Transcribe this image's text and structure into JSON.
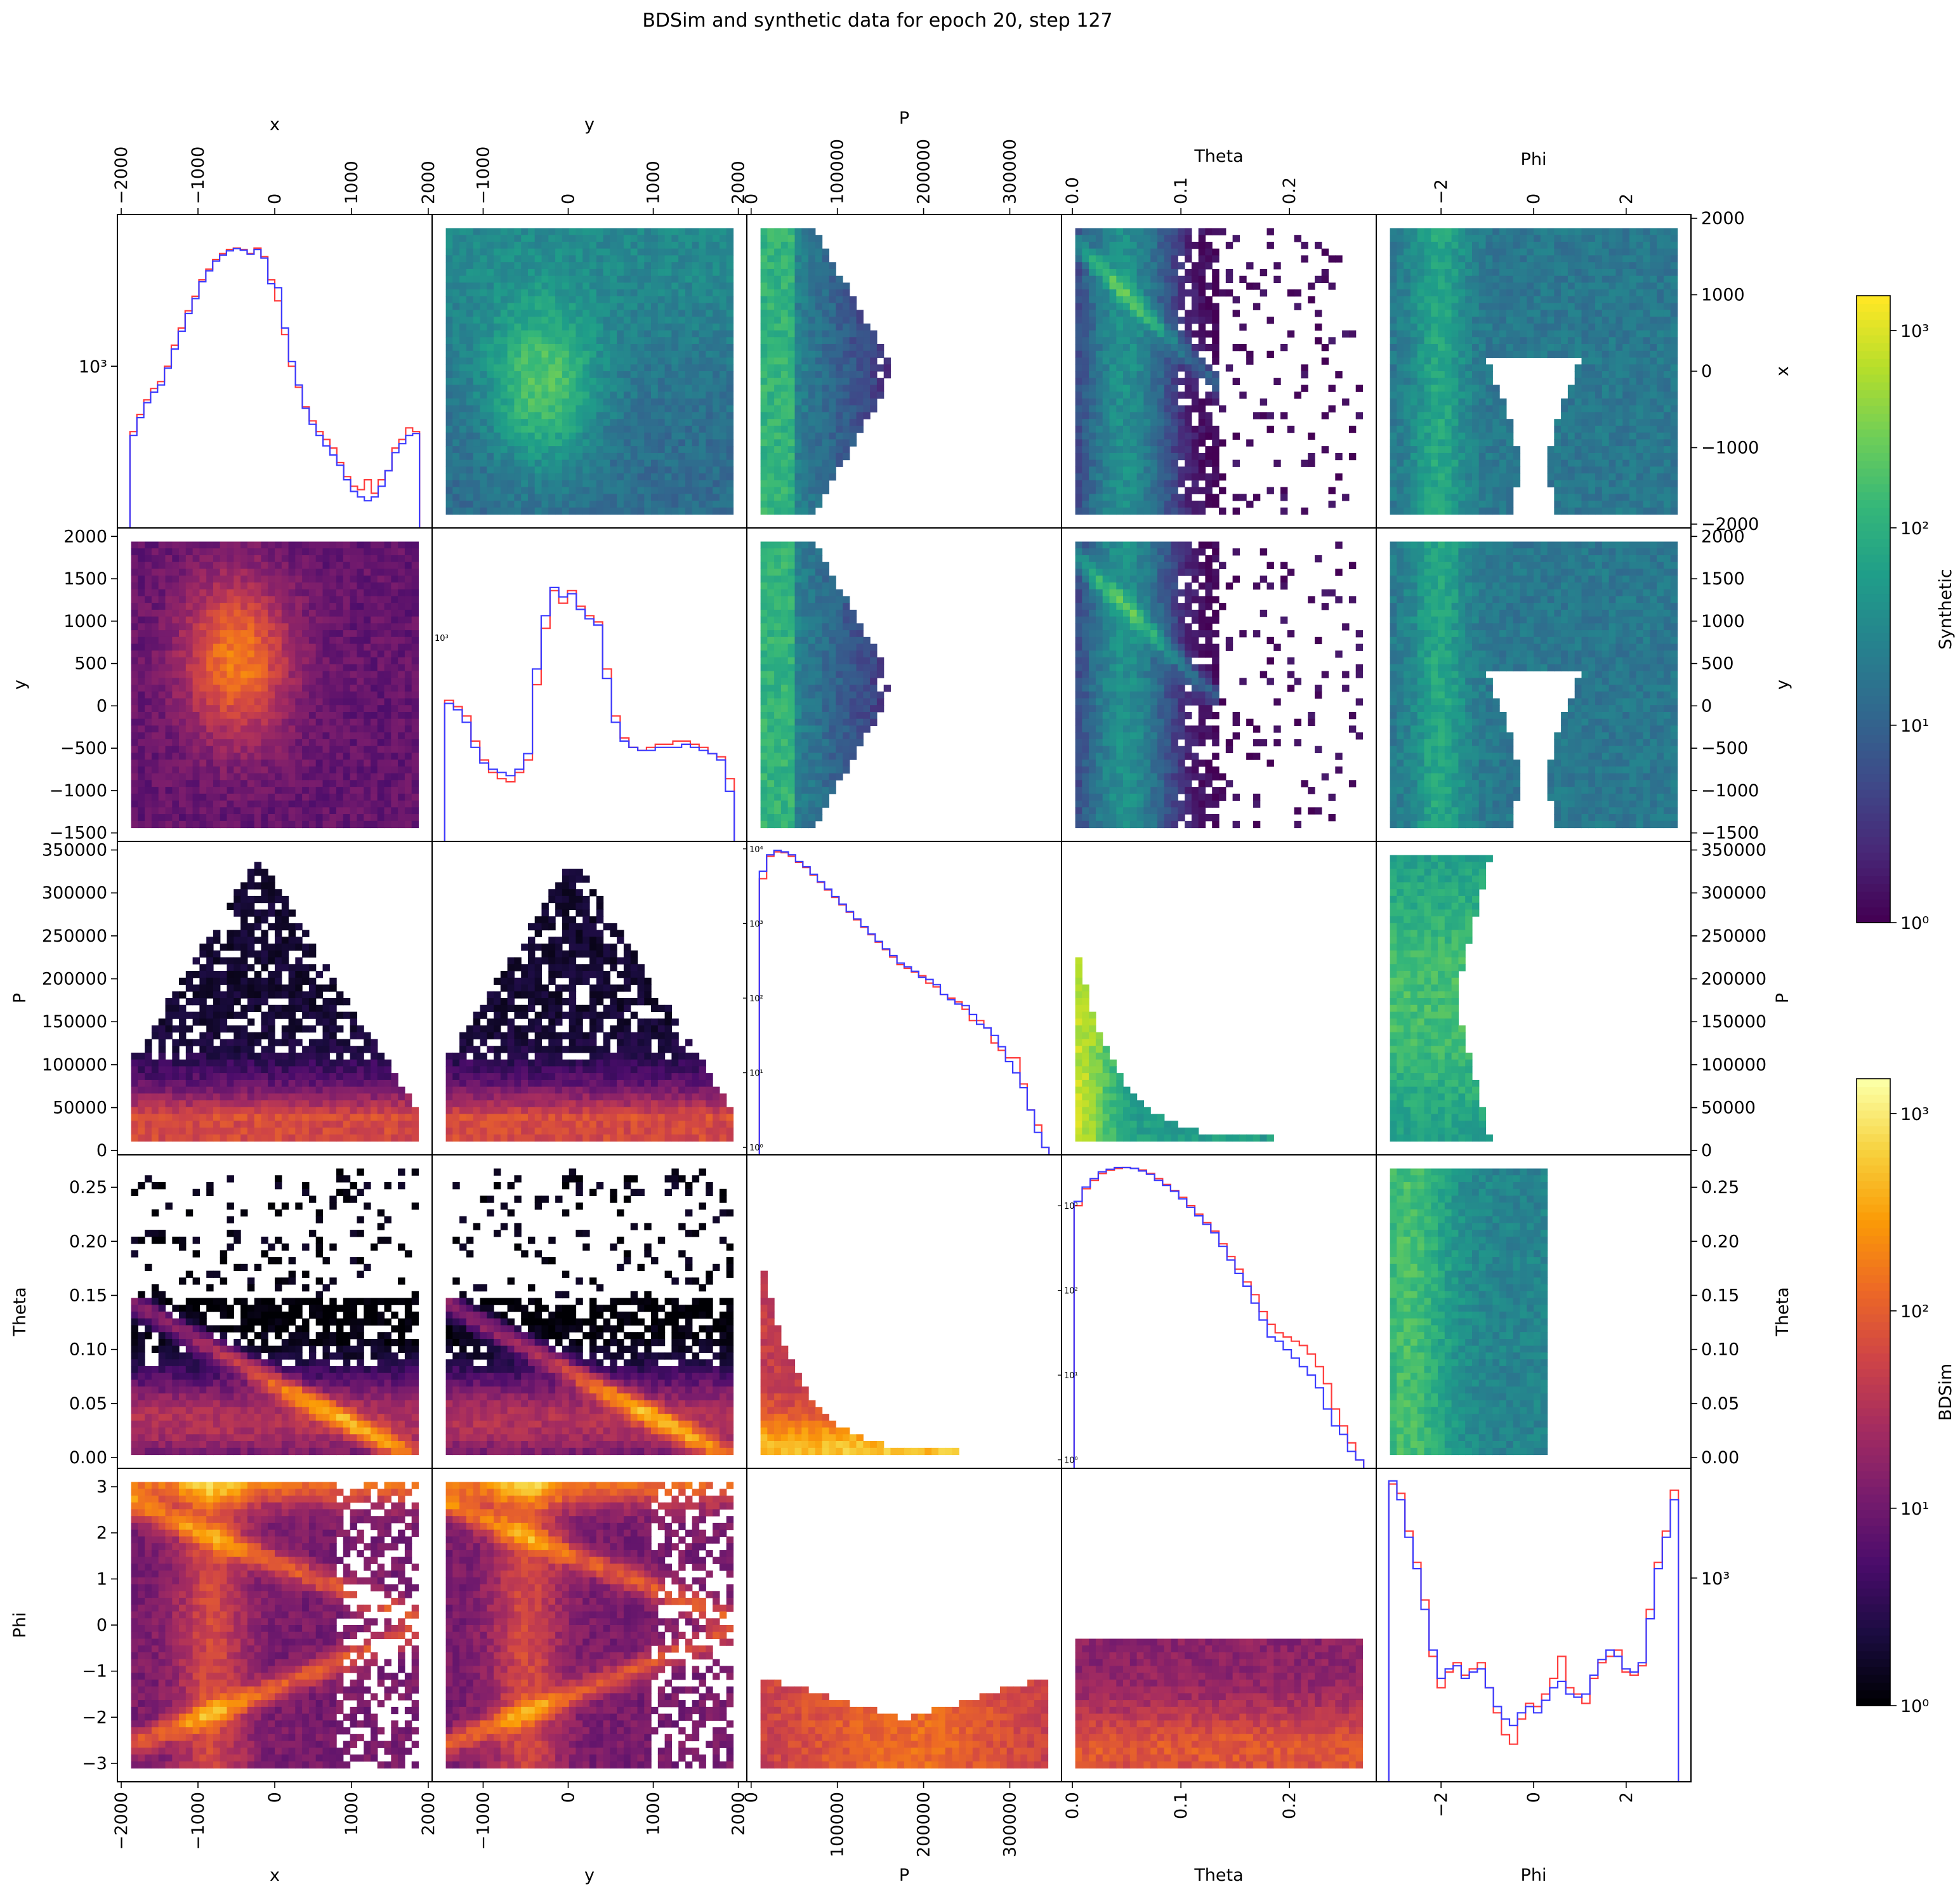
{
  "chart_data": {
    "type": "heatmap",
    "title": "BDSim and synthetic data for epoch 20, step 127",
    "variables": [
      {
        "name": "x",
        "lim": [
          -2050,
          2050
        ],
        "ticks": [
          -2000,
          -1000,
          0,
          1000,
          2000
        ],
        "tick_labels": [
          "−2000",
          "−1000",
          "0",
          "1000",
          "2000"
        ]
      },
      {
        "name": "y",
        "lim": [
          -1600,
          2100
        ],
        "ticks": [
          -1000,
          0,
          1000,
          2000
        ],
        "tick_labels": [
          "−1000",
          "0",
          "1000",
          "2000"
        ],
        "row_ticks": [
          -1500,
          -1000,
          -500,
          0,
          500,
          1000,
          1500,
          2000
        ],
        "row_tick_labels": [
          "−1500",
          "−1000",
          "−500",
          "0",
          "500",
          "1000",
          "1500",
          "2000"
        ]
      },
      {
        "name": "P",
        "lim": [
          -5000,
          360000
        ],
        "ticks": [
          0,
          100000,
          200000,
          300000
        ],
        "tick_labels": [
          "0",
          "100000",
          "200000",
          "300000"
        ],
        "row_ticks": [
          0,
          50000,
          100000,
          150000,
          200000,
          250000,
          300000,
          350000
        ],
        "row_tick_labels": [
          "0",
          "50000",
          "100000",
          "150000",
          "200000",
          "250000",
          "300000",
          "350000"
        ]
      },
      {
        "name": "Theta",
        "lim": [
          -0.01,
          0.28
        ],
        "ticks": [
          0.0,
          0.1,
          0.2
        ],
        "tick_labels": [
          "0.0",
          "0.1",
          "0.2"
        ],
        "row_ticks": [
          0.0,
          0.05,
          0.1,
          0.15,
          0.2,
          0.25
        ],
        "row_tick_labels": [
          "0.00",
          "0.05",
          "0.10",
          "0.15",
          "0.20",
          "0.25"
        ]
      },
      {
        "name": "Phi",
        "lim": [
          -3.4,
          3.4
        ],
        "ticks": [
          -2,
          0,
          2
        ],
        "tick_labels": [
          "−2",
          "0",
          "2"
        ],
        "row_ticks": [
          -3,
          -2,
          -1,
          0,
          1,
          2,
          3
        ],
        "row_tick_labels": [
          "−3",
          "−2",
          "−1",
          "0",
          "1",
          "2",
          "3"
        ]
      }
    ],
    "upper_triangle": "Synthetic",
    "lower_triangle": "BDSim",
    "series": [
      {
        "name": "BDSim",
        "color": "#ff3b3b"
      },
      {
        "name": "Synthetic",
        "color": "#3b3bff"
      }
    ],
    "diagonal": [
      {
        "var": "x",
        "ylabel_tick": "10³",
        "ylabel_value": 1000,
        "red": [
          500,
          600,
          700,
          790,
          850,
          1000,
          1250,
          1500,
          1800,
          2100,
          2500,
          2800,
          3100,
          3300,
          3450,
          3500,
          3450,
          3300,
          3500,
          3200,
          2500,
          2000,
          1400,
          1000,
          800,
          650,
          560,
          500,
          460,
          420,
          360,
          310,
          280,
          270,
          300,
          260,
          300,
          330,
          420,
          460,
          520,
          500
        ],
        "blue": [
          480,
          580,
          680,
          760,
          820,
          980,
          1200,
          1450,
          1750,
          2050,
          2450,
          2750,
          3050,
          3250,
          3400,
          3480,
          3420,
          3280,
          3450,
          3150,
          2400,
          2300,
          1500,
          1050,
          820,
          640,
          540,
          480,
          430,
          390,
          350,
          300,
          265,
          250,
          240,
          250,
          280,
          330,
          400,
          440,
          480,
          490
        ]
      },
      {
        "var": "y",
        "ylabel_tick": "10³",
        "red": [
          0.45,
          0.43,
          0.4,
          0.32,
          0.26,
          0.22,
          0.2,
          0.19,
          0.22,
          0.26,
          0.5,
          0.68,
          0.8,
          0.76,
          0.8,
          0.75,
          0.72,
          0.7,
          0.55,
          0.4,
          0.33,
          0.3,
          0.29,
          0.3,
          0.31,
          0.31,
          0.32,
          0.32,
          0.31,
          0.3,
          0.28,
          0.27,
          0.2
        ],
        "blue": [
          0.44,
          0.42,
          0.38,
          0.3,
          0.25,
          0.23,
          0.22,
          0.21,
          0.23,
          0.28,
          0.55,
          0.72,
          0.81,
          0.78,
          0.79,
          0.74,
          0.71,
          0.69,
          0.52,
          0.38,
          0.32,
          0.3,
          0.29,
          0.29,
          0.3,
          0.3,
          0.3,
          0.31,
          0.3,
          0.29,
          0.28,
          0.26,
          0.16
        ]
      },
      {
        "var": "P",
        "ylabel_ticks": [
          "10⁰",
          "10¹",
          "10²",
          "10³",
          "10⁴"
        ],
        "red_log10": [
          3.6,
          3.9,
          3.96,
          3.95,
          3.9,
          3.82,
          3.75,
          3.65,
          3.55,
          3.45,
          3.35,
          3.25,
          3.15,
          3.05,
          2.95,
          2.85,
          2.75,
          2.65,
          2.55,
          2.45,
          2.4,
          2.35,
          2.3,
          2.2,
          2.15,
          2.05,
          2.0,
          1.95,
          1.85,
          1.7,
          1.7,
          1.6,
          1.4,
          1.3,
          1.2,
          1.2,
          0.85,
          0.5,
          0.3,
          0.0
        ],
        "blue_log10": [
          3.7,
          3.92,
          3.98,
          3.96,
          3.92,
          3.83,
          3.76,
          3.66,
          3.56,
          3.46,
          3.36,
          3.26,
          3.16,
          3.06,
          2.96,
          2.86,
          2.76,
          2.66,
          2.57,
          2.47,
          2.42,
          2.36,
          2.28,
          2.25,
          2.18,
          2.05,
          1.98,
          1.92,
          1.9,
          1.78,
          1.65,
          1.6,
          1.5,
          1.35,
          1.15,
          1.0,
          0.8,
          0.5,
          0.2,
          0.0
        ]
      },
      {
        "var": "Theta",
        "ylabel_ticks": [
          "10⁰",
          "10¹",
          "10²",
          "10³"
        ],
        "red_log10": [
          3.0,
          3.2,
          3.3,
          3.38,
          3.42,
          3.44,
          3.45,
          3.44,
          3.42,
          3.38,
          3.32,
          3.25,
          3.18,
          3.1,
          3.0,
          2.9,
          2.8,
          2.7,
          2.55,
          2.4,
          2.25,
          2.1,
          1.95,
          1.75,
          1.6,
          1.5,
          1.45,
          1.4,
          1.35,
          1.25,
          1.1,
          0.9,
          0.6,
          0.4,
          0.2,
          0.0
        ],
        "blue_log10": [
          3.05,
          3.22,
          3.32,
          3.4,
          3.43,
          3.45,
          3.45,
          3.44,
          3.41,
          3.37,
          3.3,
          3.24,
          3.17,
          3.08,
          2.98,
          2.88,
          2.78,
          2.68,
          2.52,
          2.36,
          2.2,
          2.05,
          1.85,
          1.65,
          1.45,
          1.4,
          1.3,
          1.2,
          1.1,
          1.0,
          0.85,
          0.6,
          0.4,
          0.3,
          0.1,
          0.0
        ]
      },
      {
        "var": "Phi",
        "ylabel_tick": "10³",
        "red": [
          0.95,
          0.92,
          0.8,
          0.7,
          0.58,
          0.4,
          0.3,
          0.35,
          0.38,
          0.34,
          0.36,
          0.38,
          0.3,
          0.22,
          0.15,
          0.12,
          0.2,
          0.25,
          0.24,
          0.28,
          0.33,
          0.4,
          0.3,
          0.28,
          0.25,
          0.33,
          0.38,
          0.4,
          0.42,
          0.35,
          0.34,
          0.37,
          0.55,
          0.7,
          0.8,
          0.93
        ],
        "blue": [
          0.96,
          0.9,
          0.78,
          0.68,
          0.55,
          0.42,
          0.33,
          0.36,
          0.37,
          0.33,
          0.35,
          0.36,
          0.3,
          0.24,
          0.2,
          0.18,
          0.22,
          0.24,
          0.22,
          0.26,
          0.3,
          0.32,
          0.28,
          0.27,
          0.28,
          0.34,
          0.39,
          0.42,
          0.4,
          0.36,
          0.35,
          0.38,
          0.52,
          0.68,
          0.78,
          0.9
        ]
      }
    ],
    "colorbars": [
      {
        "label": "Synthetic",
        "colormap": "viridis",
        "scale": "log",
        "range": [
          1,
          1500
        ],
        "tick_labels": [
          "10⁰",
          "10¹",
          "10²",
          "10³"
        ]
      },
      {
        "label": "BDSim",
        "colormap": "inferno",
        "scale": "log",
        "range": [
          1,
          1500
        ],
        "tick_labels": [
          "10⁰",
          "10¹",
          "10²",
          "10³"
        ]
      }
    ]
  }
}
